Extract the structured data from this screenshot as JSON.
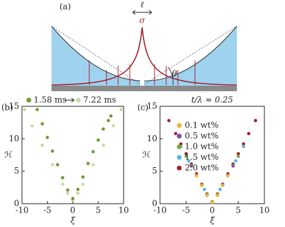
{
  "diagram": {
    "label": "(a)",
    "ell": "ℓ",
    "sigma": "σ",
    "theta": "θ"
  },
  "chart_data": [
    {
      "type": "scatter",
      "label": "(b)",
      "xlabel": "ξ",
      "ylabel": "ℋ",
      "xlim": [
        -10,
        10
      ],
      "xticks": [
        -10,
        -5,
        0,
        5,
        10
      ],
      "ylim": [
        0,
        15
      ],
      "yticks": [
        0,
        5,
        10,
        15
      ],
      "legend": "top",
      "series": [
        {
          "name": "1.58 ms",
          "color": "#6f9c30",
          "x": [
            -7,
            -6,
            -5,
            -4,
            -3,
            -2,
            -1,
            0,
            1,
            2,
            3,
            4,
            5,
            6,
            7,
            7.5
          ],
          "values": [
            14.5,
            12.3,
            10.2,
            8.1,
            6,
            4,
            2.1,
            0.8,
            2.2,
            4.1,
            6.2,
            8,
            9.8,
            11.5,
            12.8,
            13.5
          ]
        },
        {
          "name": "7.22 ms",
          "color": "#c6dca2",
          "x": [
            -9.5,
            -8,
            -6,
            -4,
            -2,
            -1,
            0,
            1,
            2,
            4,
            6,
            8,
            9.5
          ],
          "values": [
            14.5,
            12,
            9,
            6,
            3,
            1.6,
            0.6,
            1.6,
            3,
            6,
            9,
            12,
            14.5
          ]
        }
      ]
    },
    {
      "type": "scatter",
      "label": "(c)",
      "title": "t/λ ≈ 0.25",
      "xlabel": "ξ",
      "ylabel": "ℋ",
      "xlim": [
        -10,
        10
      ],
      "xticks": [
        -10,
        -5,
        0,
        5,
        10
      ],
      "ylim": [
        0,
        15
      ],
      "yticks": [
        0,
        5,
        10,
        15
      ],
      "legend": "inside",
      "series": [
        {
          "name": "0.1 wt%",
          "color": "#efb233",
          "x": [
            -3,
            -2,
            -1,
            0,
            1,
            2,
            3
          ],
          "values": [
            4.3,
            2.8,
            1.3,
            0.2,
            1.3,
            2.8,
            4.3
          ]
        },
        {
          "name": "0.5 wt%",
          "color": "#7b4f9e",
          "x": [
            -4,
            -3,
            -2,
            -1,
            0,
            1,
            2,
            3,
            4
          ],
          "values": [
            5.8,
            4.4,
            2.9,
            1.3,
            0.2,
            1.3,
            2.9,
            4.4,
            5.8
          ]
        },
        {
          "name": "1.0 wt%",
          "color": "#7ca640",
          "x": [
            -5,
            -4,
            -3,
            -2,
            -1,
            0,
            1,
            2,
            3,
            4,
            5
          ],
          "values": [
            7.3,
            5.9,
            4.4,
            2.9,
            1.4,
            0.3,
            1.4,
            2.9,
            4.4,
            5.9,
            7.3
          ]
        },
        {
          "name": "1.5 wt%",
          "color": "#5ab4e0",
          "x": [
            -6,
            -4.5,
            -3,
            -1.5,
            0,
            1.5,
            3,
            4.5,
            6
          ],
          "values": [
            8.8,
            6.6,
            4.4,
            2.2,
            0.3,
            2.2,
            4.4,
            6.6,
            8.8
          ]
        },
        {
          "name": "2.0 wt%",
          "color": "#a3202a",
          "x": [
            -8.3,
            -7,
            -6,
            -5,
            -4,
            -3,
            -2,
            -1,
            0,
            1,
            2,
            3,
            4,
            5,
            6,
            7,
            8.3
          ],
          "values": [
            12.8,
            10.8,
            9.2,
            7.7,
            6.1,
            4.6,
            3.0,
            1.5,
            0.3,
            1.5,
            3.0,
            4.6,
            6.1,
            7.7,
            9.2,
            10.8,
            12.8
          ]
        }
      ]
    }
  ]
}
